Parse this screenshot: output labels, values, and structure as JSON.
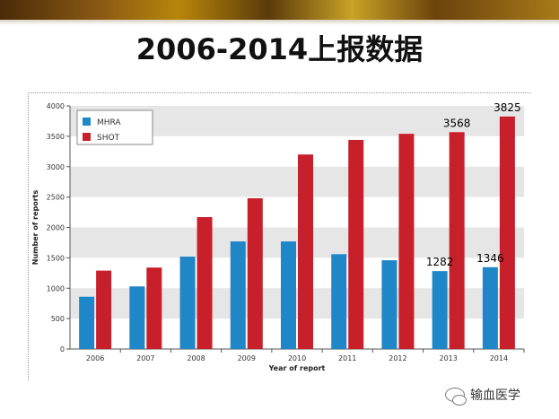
{
  "slide": {
    "title": "2006-2014上报数据"
  },
  "watermark": {
    "text": "输血医学",
    "icon": "wechat-icon"
  },
  "colors": {
    "mhra": "#1f86c8",
    "shot": "#c8202a",
    "band": "#e6e6e6"
  },
  "chart_data": {
    "type": "bar",
    "categories": [
      "2006",
      "2007",
      "2008",
      "2009",
      "2010",
      "2011",
      "2012",
      "2013",
      "2014"
    ],
    "series": [
      {
        "name": "MHRA",
        "values": [
          860,
          1030,
          1520,
          1770,
          1770,
          1560,
          1460,
          1282,
          1346
        ]
      },
      {
        "name": "SHOT",
        "values": [
          1290,
          1340,
          2170,
          2480,
          3200,
          3440,
          3540,
          3568,
          3825
        ]
      }
    ],
    "xlabel": "Year of report",
    "ylabel": "Number of reports",
    "ylim": [
      0,
      4000
    ],
    "yticks": [
      "0",
      "500",
      "1000",
      "1500",
      "2000",
      "2500",
      "3000",
      "3500",
      "4000"
    ],
    "legend": "top-left",
    "grid": "alternating horizontal bands",
    "annotations": [
      {
        "category": "2013",
        "series": "MHRA",
        "text": "1282"
      },
      {
        "category": "2013",
        "series": "SHOT",
        "text": "3568"
      },
      {
        "category": "2014",
        "series": "MHRA",
        "text": "1346"
      },
      {
        "category": "2014",
        "series": "SHOT",
        "text": "3825"
      }
    ]
  }
}
